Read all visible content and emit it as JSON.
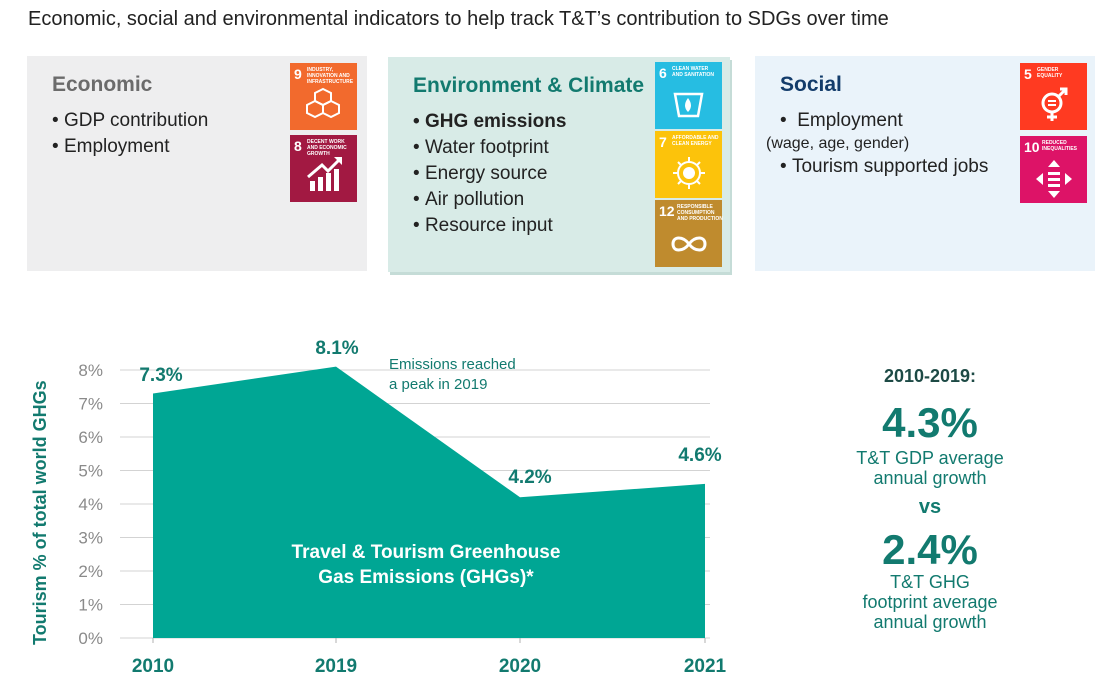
{
  "heading": "Economic, social and environmental indicators to help track T&T’s contribution to SDGs over time",
  "colors": {
    "teal": "#00a694",
    "dark_teal": "#127a6f",
    "navy": "#133c6b"
  },
  "cards": {
    "economic": {
      "title": "Economic",
      "items": [
        "GDP contribution",
        "Employment"
      ],
      "sdgs": [
        {
          "number": "9",
          "label": "INDUSTRY, INNOVATION AND INFRASTRUCTURE",
          "color": "#f26a2d",
          "icon": "cubes-icon"
        },
        {
          "number": "8",
          "label": "DECENT WORK AND ECONOMIC GROWTH",
          "color": "#a21942",
          "icon": "growth-chart-icon"
        }
      ]
    },
    "environment": {
      "title": "Environment & Climate",
      "items": [
        "GHG emissions",
        "Water footprint",
        "Energy source",
        "Air pollution",
        "Resource input"
      ],
      "sdgs": [
        {
          "number": "6",
          "label": "CLEAN WATER AND SANITATION",
          "color": "#26bde2",
          "icon": "water-drop-icon"
        },
        {
          "number": "7",
          "label": "AFFORDABLE AND CLEAN ENERGY",
          "color": "#fcc30b",
          "icon": "sun-icon"
        },
        {
          "number": "12",
          "label": "RESPONSIBLE CONSUMPTION AND PRODUCTION",
          "color": "#bf8b2e",
          "icon": "infinity-icon"
        }
      ]
    },
    "social": {
      "title": "Social",
      "items": [
        "Employment",
        "Tourism supported jobs"
      ],
      "employment_sub": "(wage, age, gender)",
      "sdgs": [
        {
          "number": "5",
          "label": "GENDER EQUALITY",
          "color": "#ff3a21",
          "icon": "gender-equality-icon"
        },
        {
          "number": "10",
          "label": "REDUCED INEQUALITIES",
          "color": "#dd1367",
          "icon": "reduced-inequalities-icon"
        }
      ]
    }
  },
  "chart_data": {
    "type": "area",
    "title": "",
    "ylabel": "Tourism % of total world GHGs",
    "x": [
      "2010",
      "2019",
      "2020",
      "2021"
    ],
    "series": [
      {
        "name": "Travel & Tourism Greenhouse Gas Emissions (GHGs)*",
        "values": [
          7.3,
          8.1,
          4.2,
          4.6
        ]
      }
    ],
    "data_labels": [
      "7.3%",
      "8.1%",
      "4.2%",
      "4.6%"
    ],
    "yticks": [
      "0%",
      "1%",
      "2%",
      "3%",
      "4%",
      "5%",
      "6%",
      "7%",
      "8%"
    ],
    "ylim": [
      0,
      8
    ],
    "grid": true,
    "area_label_lines": [
      "Travel & Tourism Greenhouse",
      "Gas Emissions (GHGs)*"
    ],
    "annotation_lines": [
      "Emissions reached",
      "a peak in 2019"
    ],
    "color": "#00a694"
  },
  "summary": {
    "period": "2010-2019:",
    "gdp_value": "4.3%",
    "gdp_label_lines": [
      "T&T GDP average",
      "annual growth"
    ],
    "vs": "vs",
    "ghg_value": "2.4%",
    "ghg_label_lines": [
      "T&T GHG",
      "footprint average",
      "annual growth"
    ]
  }
}
